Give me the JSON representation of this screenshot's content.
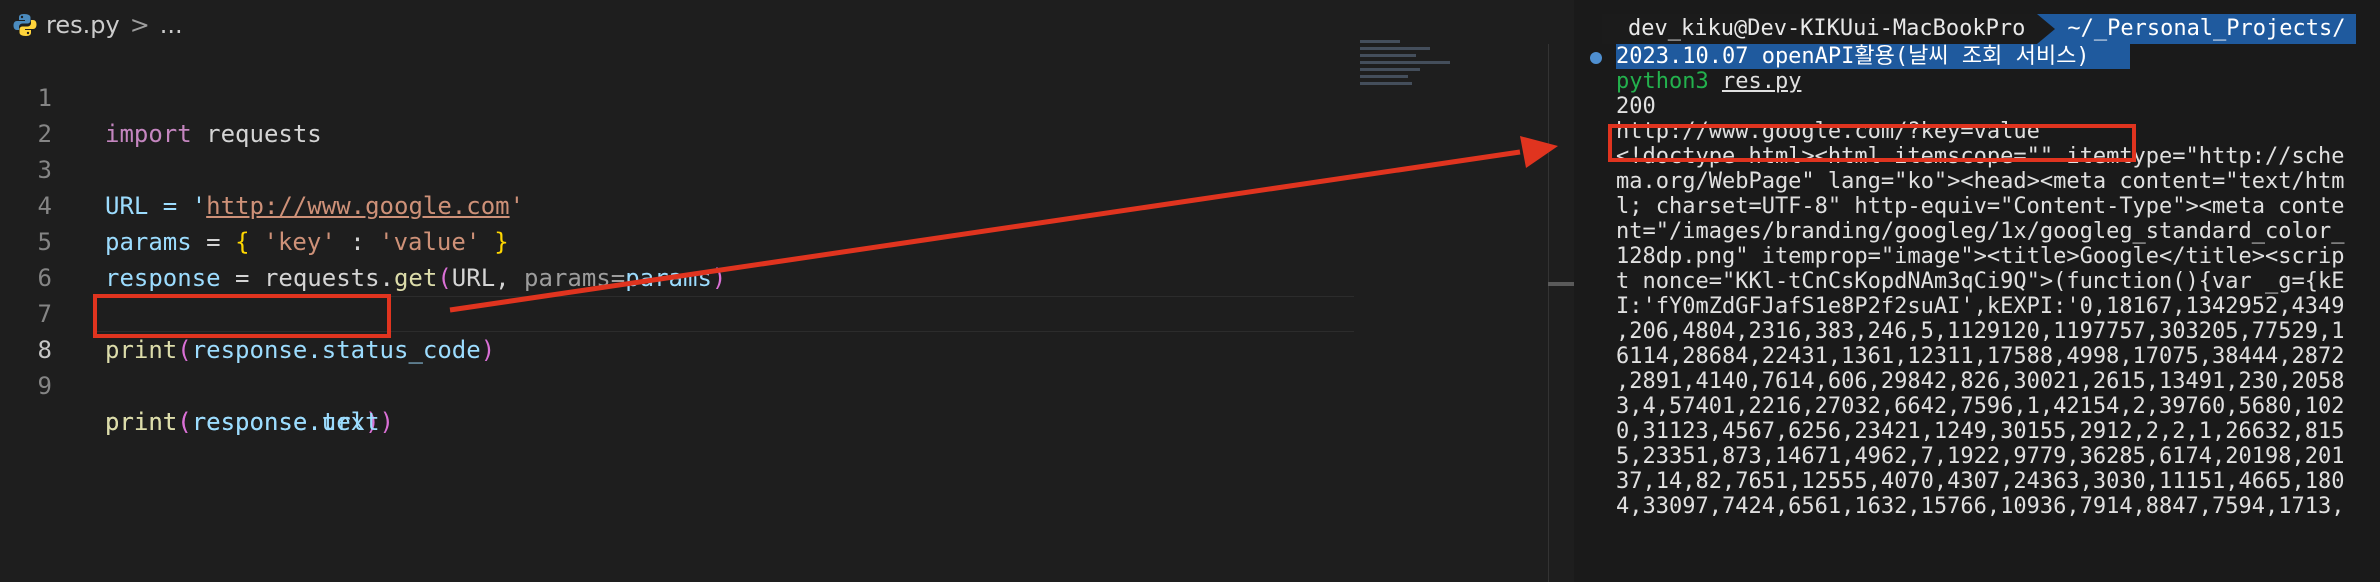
{
  "editor": {
    "breadcrumb": {
      "file": "res.py",
      "separator": ">",
      "more": "..."
    },
    "line_numbers": [
      "1",
      "2",
      "3",
      "4",
      "5",
      "6",
      "7",
      "8",
      "9"
    ],
    "code": {
      "l1": {
        "kw": "import",
        "rest": " requests"
      },
      "l3": {
        "a": "URL = '",
        "url": "http://www.google.com",
        "b": "'"
      },
      "l4": {
        "var": "params",
        "a": " = ",
        "open": "{",
        "k": "'key'",
        "c": " : ",
        "v": "'value'",
        "close": "}"
      },
      "l5": {
        "var": "response",
        "a": " = requests.",
        "fn": "get",
        "open": "(",
        "b": "URL, ",
        "hint": "params=",
        "var2": "params",
        "close": ")"
      },
      "l7": {
        "fn": "print",
        "open": "(",
        "var": "response",
        "attr": ".status_code",
        "close": ")"
      },
      "l8": {
        "fn": "print",
        "open": "(",
        "var": "response",
        "attr": ".url",
        "close": ")"
      },
      "l9": {
        "fn": "print",
        "open": "(",
        "var": "response",
        "attr": ".text",
        "close": ")"
      }
    }
  },
  "terminal": {
    "prompt_user": "dev_kiku@Dev-KIKUui-MacBookPro",
    "prompt_path": "~/_Personal_Projects/",
    "title_line": "2023.10.07 openAPI활용(날씨 조회 서비스)",
    "command": "python3",
    "command_file": "res.py",
    "status": "200",
    "url_output": "http://www.google.com/?key=value",
    "output_lines": [
      "<!doctype html><html itemscope=\"\" itemtype=\"http://sche",
      "ma.org/WebPage\" lang=\"ko\"><head><meta content=\"text/htm",
      "l; charset=UTF-8\" http-equiv=\"Content-Type\"><meta conte",
      "nt=\"/images/branding/googleg/1x/googleg_standard_color_",
      "128dp.png\" itemprop=\"image\"><title>Google</title><scrip",
      "t nonce=\"KKl-tCnCsKopdNAm3qCi9Q\">(function(){var _g={kE",
      "I:'fY0mZdGFJafS1e8P2f2suAI',kEXPI:'0,18167,1342952,4349",
      ",206,4804,2316,383,246,5,1129120,1197757,303205,77529,1",
      "6114,28684,22431,1361,12311,17588,4998,17075,38444,2872",
      ",2891,4140,7614,606,29842,826,30021,2615,13491,230,2058",
      "3,4,57401,2216,27032,6642,7596,1,42154,2,39760,5680,102",
      "0,31123,4567,6256,23421,1249,30155,2912,2,2,1,26632,815",
      "5,23351,873,14671,4962,7,1922,9779,36285,6174,20198,201",
      "37,14,82,7651,12555,4070,4307,24363,3030,11151,4665,180",
      "4,33097,7424,6561,1632,15766,10936,7914,8847,7594,1713,"
    ]
  },
  "colors": {
    "annotation": "#e0341f",
    "prompt_path_bg": "#1f5a9e",
    "command": "#23b14d"
  }
}
